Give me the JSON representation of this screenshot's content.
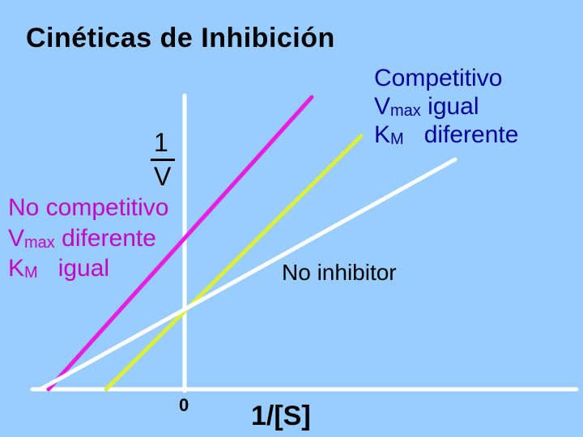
{
  "title": "Cinéticas de Inhibición",
  "competitive": {
    "name": "Competitivo",
    "line1_main": "V",
    "line1_sub": "max",
    "line1_rest": " igual",
    "line2_main": "K",
    "line2_sub": "M",
    "line2_rest": "   diferente"
  },
  "noncompetitive": {
    "name": "No competitivo",
    "line1_main": "V",
    "line1_sub": "max",
    "line1_rest": " diferente",
    "line2_main": "K",
    "line2_sub": "M",
    "line2_rest": "   igual"
  },
  "no_inhibitor": "No inhibitor",
  "y_axis": {
    "numerator": "1",
    "denominator": "V"
  },
  "x_axis": {
    "label": "1/[S]",
    "origin": "0"
  },
  "colors": {
    "background": "#99ccff",
    "noncompetitive_line": "#e81de0",
    "competitive_line": "#ddee3a",
    "no_inhibitor_line": "#ffffff",
    "axes": "#ffffff"
  }
}
